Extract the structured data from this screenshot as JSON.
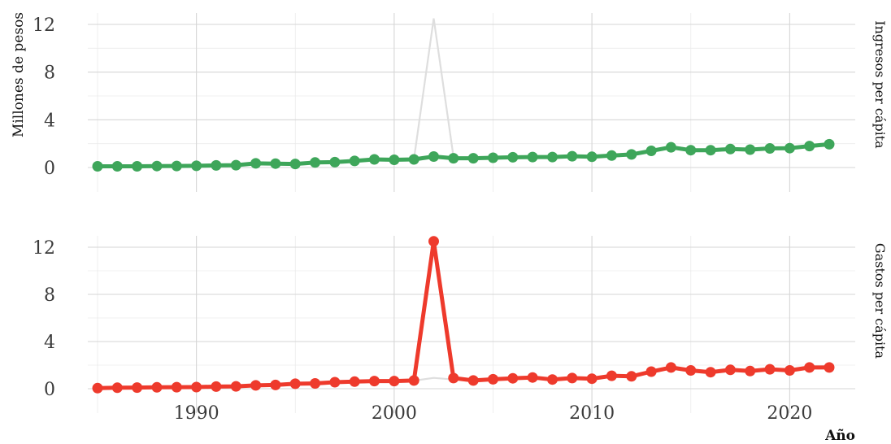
{
  "chart_data": {
    "type": "line",
    "layout": "two facet panels, shared x axis, facet strip labels on the right",
    "ylabel": "Millones de pesos",
    "xlabel": "Año",
    "xlim": [
      1985,
      2022
    ],
    "ylim": [
      0,
      13
    ],
    "x_ticks": [
      1990,
      2000,
      2010,
      2020
    ],
    "y_ticks": [
      0,
      4,
      8,
      12
    ],
    "grid": true,
    "legend": "none",
    "background_line": "each panel shows the other series as a light grey line",
    "x": [
      1985,
      1986,
      1987,
      1988,
      1989,
      1990,
      1991,
      1992,
      1993,
      1994,
      1995,
      1996,
      1997,
      1998,
      1999,
      2000,
      2001,
      2002,
      2003,
      2004,
      2005,
      2006,
      2007,
      2008,
      2009,
      2010,
      2011,
      2012,
      2013,
      2014,
      2015,
      2016,
      2017,
      2018,
      2019,
      2020,
      2021,
      2022
    ],
    "series": [
      {
        "name": "Ingresos per cápita",
        "color": "#3ea65a",
        "values": [
          0.1,
          0.1,
          0.1,
          0.12,
          0.13,
          0.14,
          0.18,
          0.2,
          0.35,
          0.33,
          0.3,
          0.42,
          0.45,
          0.55,
          0.68,
          0.65,
          0.68,
          0.92,
          0.78,
          0.78,
          0.82,
          0.86,
          0.88,
          0.88,
          0.95,
          0.9,
          1.0,
          1.1,
          1.4,
          1.7,
          1.45,
          1.45,
          1.55,
          1.5,
          1.6,
          1.62,
          1.8,
          1.95
        ]
      },
      {
        "name": "Gastos per cápita",
        "color": "#ee3a2c",
        "values": [
          0.05,
          0.08,
          0.1,
          0.12,
          0.13,
          0.14,
          0.18,
          0.2,
          0.28,
          0.32,
          0.42,
          0.45,
          0.55,
          0.6,
          0.65,
          0.65,
          0.7,
          12.5,
          0.9,
          0.7,
          0.8,
          0.88,
          0.95,
          0.78,
          0.9,
          0.85,
          1.1,
          1.05,
          1.45,
          1.8,
          1.55,
          1.4,
          1.6,
          1.5,
          1.65,
          1.55,
          1.8,
          1.8
        ]
      }
    ]
  }
}
